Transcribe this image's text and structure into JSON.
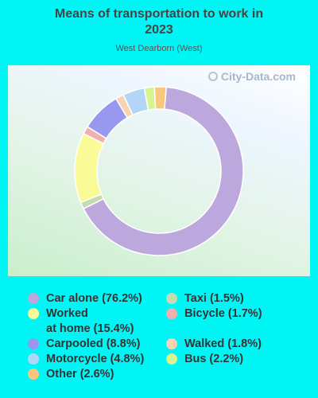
{
  "header": {
    "title_line1": "Means of transportation to work in",
    "title_line2": "2023",
    "subtitle": "West Dearborn (West)"
  },
  "watermark": "City-Data.com",
  "chart_data": {
    "type": "pie",
    "donut": true,
    "title": "Means of transportation to work in 2023",
    "subtitle": "West Dearborn (West)",
    "slices": [
      {
        "label": "Car alone",
        "value": 76.2,
        "color": "#bca8dc",
        "legend_text": "Car alone (76.2%)"
      },
      {
        "label": "Taxi",
        "value": 1.5,
        "color": "#c4dcb0",
        "legend_text": "Taxi (1.5%)"
      },
      {
        "label": "Worked at home",
        "value": 15.4,
        "color": "#fafa96",
        "legend_text_line1": "Worked",
        "legend_text_line2": "at home (15.4%)"
      },
      {
        "label": "Bicycle",
        "value": 1.7,
        "color": "#f0b0b0",
        "legend_text": "Bicycle (1.7%)"
      },
      {
        "label": "Carpooled",
        "value": 8.8,
        "color": "#9898ee",
        "legend_text": "Carpooled (8.8%)"
      },
      {
        "label": "Walked",
        "value": 1.8,
        "color": "#f9d2b2",
        "legend_text": "Walked (1.8%)"
      },
      {
        "label": "Motorcycle",
        "value": 4.8,
        "color": "#b2d6f8",
        "legend_text": "Motorcycle (4.8%)"
      },
      {
        "label": "Bus",
        "value": 2.2,
        "color": "#d6f590",
        "legend_text": "Bus (2.2%)"
      },
      {
        "label": "Other",
        "value": 2.6,
        "color": "#f8c67c",
        "legend_text": "Other (2.6%)"
      }
    ],
    "legend_placement": "bottom"
  }
}
